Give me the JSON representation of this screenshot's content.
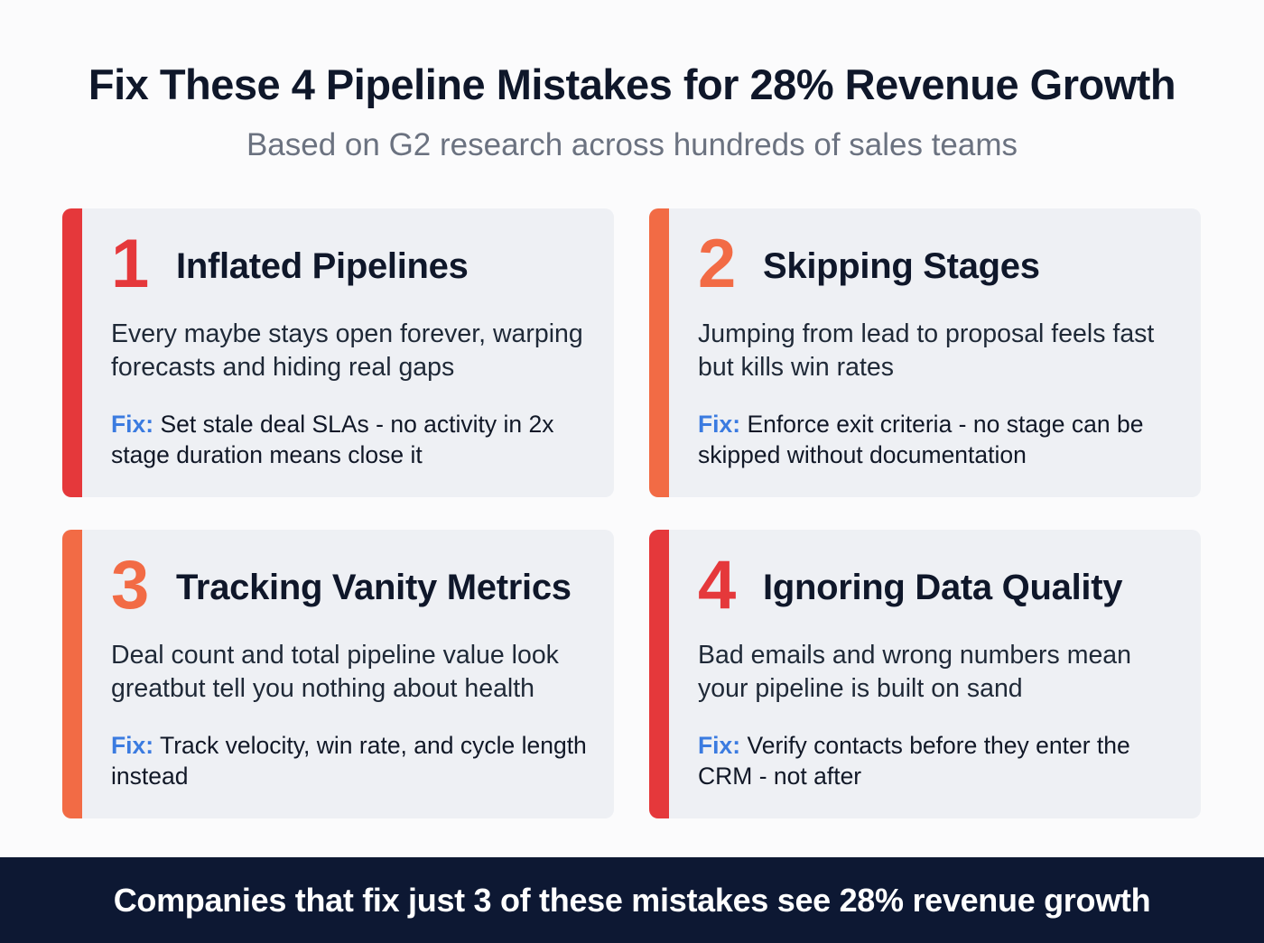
{
  "header": {
    "title": "Fix These 4 Pipeline Mistakes for 28% Revenue Growth",
    "subtitle": "Based on G2 research across hundreds of sales teams"
  },
  "colors": {
    "title": "#0f172a",
    "subtitle": "#6b7280",
    "red_accent": "#e5383b",
    "orange_accent": "#f26b45",
    "fix_label": "#3b7be0",
    "card_bg": "#eef0f4",
    "footer_bg": "#0d1833"
  },
  "cards": [
    {
      "number": "1",
      "accent_color": "#e5383b",
      "title": "Inflated Pipelines",
      "description": "Every maybe stays open forever, warping forecasts and hiding real gaps",
      "fix_label": "Fix:",
      "fix_text": "Set stale deal SLAs - no activity in 2x stage duration means close it"
    },
    {
      "number": "2",
      "accent_color": "#f26b45",
      "title": "Skipping Stages",
      "description": "Jumping from lead to proposal feels fast but kills win rates",
      "fix_label": "Fix:",
      "fix_text": "Enforce exit criteria - no stage can be skipped without documentation"
    },
    {
      "number": "3",
      "accent_color": "#f26b45",
      "title": "Tracking Vanity Metrics",
      "description": "Deal count and total pipeline value look greatbut tell you nothing about health",
      "fix_label": "Fix:",
      "fix_text": "Track velocity, win rate, and cycle length instead"
    },
    {
      "number": "4",
      "accent_color": "#e5383b",
      "title": "Ignoring Data Quality",
      "description": "Bad emails and wrong numbers mean your pipeline is built on sand",
      "fix_label": "Fix:",
      "fix_text": "Verify contacts before they enter the CRM - not after"
    }
  ],
  "footer": {
    "text": "Companies that fix just 3 of these mistakes see 28% revenue growth"
  }
}
